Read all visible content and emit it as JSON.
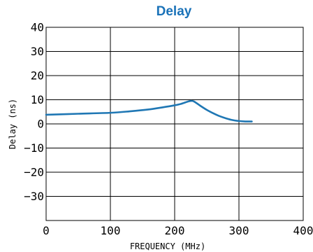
{
  "chart_data": {
    "type": "line",
    "title": "Delay",
    "xlabel": "FREQUENCY (MHz)",
    "ylabel": "Delay (ns)",
    "xlim": [
      0,
      400
    ],
    "ylim": [
      -40,
      40
    ],
    "xticks": [
      0,
      100,
      200,
      300,
      400
    ],
    "yticks": [
      40,
      30,
      20,
      10,
      0,
      -10,
      -20,
      -30
    ],
    "grid": true,
    "series": [
      {
        "color": "#1f77b4",
        "x": [
          0,
          50,
          100,
          130,
          160,
          180,
          200,
          210,
          220,
          225,
          230,
          240,
          250,
          260,
          270,
          280,
          290,
          300,
          310,
          320
        ],
        "y": [
          3.8,
          4.2,
          4.6,
          5.2,
          6.0,
          6.8,
          7.7,
          8.3,
          9.2,
          9.5,
          9.3,
          7.5,
          5.8,
          4.4,
          3.2,
          2.3,
          1.6,
          1.2,
          1.0,
          1.0
        ]
      }
    ]
  }
}
